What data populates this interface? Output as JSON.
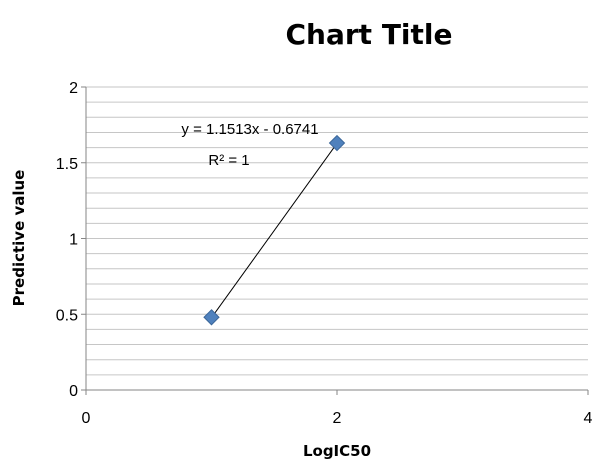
{
  "chart_data": {
    "type": "scatter",
    "title": "Chart Title",
    "xlabel": "LogIC50",
    "ylabel": "Predictive value",
    "xlim": [
      0,
      4
    ],
    "ylim": [
      0,
      2
    ],
    "x_ticks": [
      "0",
      "2",
      "4"
    ],
    "y_ticks": [
      "0",
      "0.5",
      "1",
      "1.5",
      "2"
    ],
    "minor_gridlines": true,
    "legend": "none",
    "points": [
      {
        "x": 1,
        "y": 0.48
      },
      {
        "x": 2,
        "y": 1.63
      }
    ],
    "trendline": {
      "slope": 1.1513,
      "intercept": -0.6741,
      "equation_label": "y = 1.1513x - 0.6741",
      "r2_label": "R² = 1"
    },
    "marker_color": "#4f81bd",
    "line_color": "#000000",
    "grid_color": "#c6c6c6"
  }
}
